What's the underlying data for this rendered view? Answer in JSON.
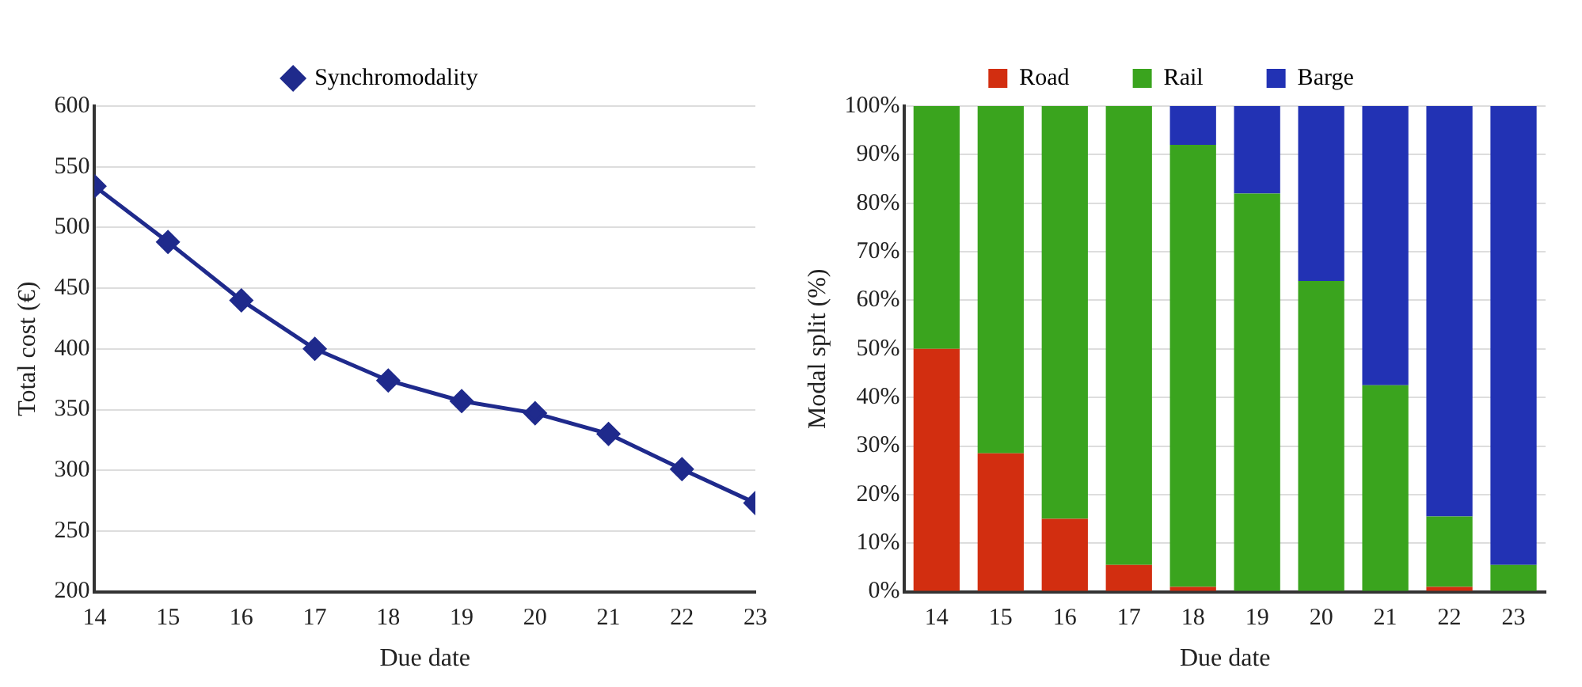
{
  "chart_data": [
    {
      "type": "line",
      "xlabel": "Due date",
      "ylabel": "Total cost (€)",
      "x": [
        14,
        15,
        16,
        17,
        18,
        19,
        20,
        21,
        22,
        23
      ],
      "xlim": [
        14,
        23
      ],
      "xticks": [
        14,
        15,
        16,
        17,
        18,
        19,
        20,
        21,
        22,
        23
      ],
      "ylim": [
        200,
        600
      ],
      "yticks": [
        200,
        250,
        300,
        350,
        400,
        450,
        500,
        550,
        600
      ],
      "grid": "y",
      "legend": "top",
      "marker": "diamond",
      "line_style": "solid",
      "series": [
        {
          "name": "Synchromodality",
          "color": "#1f2a8c",
          "values": [
            534,
            488,
            440,
            400,
            374,
            357,
            347,
            330,
            301,
            273
          ]
        }
      ]
    },
    {
      "type": "bar",
      "stacked": true,
      "xlabel": "Due date",
      "ylabel": "Modal split (%)",
      "categories": [
        "14",
        "15",
        "16",
        "17",
        "18",
        "19",
        "20",
        "21",
        "22",
        "23"
      ],
      "ylim": [
        0,
        100
      ],
      "yticks": [
        {
          "value": 0,
          "label": "0%"
        },
        {
          "value": 10,
          "label": "10%"
        },
        {
          "value": 20,
          "label": "20%"
        },
        {
          "value": 30,
          "label": "30%"
        },
        {
          "value": 40,
          "label": "40%"
        },
        {
          "value": 50,
          "label": "50%"
        },
        {
          "value": 60,
          "label": "60%"
        },
        {
          "value": 70,
          "label": "70%"
        },
        {
          "value": 80,
          "label": "80%"
        },
        {
          "value": 90,
          "label": "90%"
        },
        {
          "value": 100,
          "label": "100%"
        }
      ],
      "grid": "y",
      "legend": "top",
      "series": [
        {
          "name": "Road",
          "color": "#d22e10",
          "values": [
            50,
            28.5,
            15,
            5.5,
            1,
            0,
            0,
            0,
            1,
            0
          ]
        },
        {
          "name": "Rail",
          "color": "#3aa41e",
          "values": [
            50,
            71.5,
            85,
            94.5,
            91,
            82,
            64,
            42.5,
            14.5,
            5.5
          ]
        },
        {
          "name": "Barge",
          "color": "#2232b4",
          "values": [
            0,
            0,
            0,
            0,
            8,
            18,
            36,
            57.5,
            84.5,
            94.5
          ]
        }
      ]
    }
  ]
}
